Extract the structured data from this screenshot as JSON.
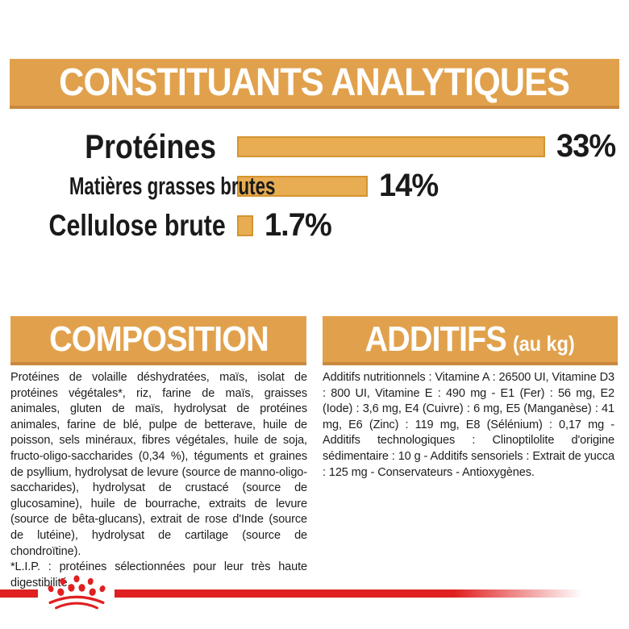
{
  "analytical": {
    "title": "CONSTITUANTS ANALYTIQUES",
    "rows": [
      {
        "label": "Protéines",
        "value": "33%",
        "percent": 33
      },
      {
        "label": "Matières grasses brutes",
        "value": "14%",
        "percent": 14
      },
      {
        "label": "Cellulose brute",
        "value": "1.7%",
        "percent": 1.7
      }
    ]
  },
  "composition": {
    "title": "COMPOSITION",
    "body": "Protéines de volaille déshydratées, maïs, isolat de protéines végétales*, riz, farine de maïs, graisses animales, gluten de maïs, hydrolysat de protéines animales, farine de blé, pulpe de betterave, huile de poisson, sels minéraux, fibres végétales, huile de soja, fructo-oligo-saccharides (0,34 %), téguments et graines de psyllium, hydrolysat de levure (source de manno-oligo-saccharides), hydrolysat de crustacé (source de glucosamine), huile de bourrache, extraits de levure (source de bêta-glucans), extrait de rose d'Inde (source de lutéine), hydrolysat de cartilage (source de chondroïtine).",
    "footnote": "*L.I.P. : protéines sélectionnées pour leur très haute digestibilité."
  },
  "additives": {
    "title": "ADDITIFS",
    "title_suffix": "(au kg)",
    "body": "Additifs nutritionnels : Vitamine A : 26500 UI, Vitamine D3 : 800 UI, Vitamine E : 490 mg - E1 (Fer) : 56 mg, E2 (Iode) : 3,6 mg, E4 (Cuivre) : 6 mg, E5 (Manganèse) : 41 mg, E6 (Zinc) : 119 mg, E8 (Sélénium) : 0,17 mg - Additifs technologiques : Clinoptilolite d'origine sédimentaire : 10 g - Additifs sensoriels : Extrait de yucca : 125 mg - Conservateurs - Antioxygènes."
  },
  "brand": {
    "logo_icon": "royal-canin-crown-icon"
  },
  "colors": {
    "amber": "#E1A14C",
    "amber_dark_edge": "#C9883D",
    "bar_fill": "#E8AC52",
    "bar_border": "#D49430",
    "red": "#E02020",
    "text": "#1A1A1A",
    "header_text": "#FFFFFF"
  },
  "chart_data": {
    "type": "bar",
    "orientation": "horizontal",
    "title": "CONSTITUANTS ANALYTIQUES",
    "categories": [
      "Protéines",
      "Matières grasses brutes",
      "Cellulose brute"
    ],
    "values": [
      33,
      14,
      1.7
    ],
    "value_labels": [
      "33%",
      "14%",
      "1.7%"
    ],
    "unit": "%",
    "xlim": [
      0,
      35
    ],
    "grid": false,
    "legend": false,
    "bar_color": "#E8AC52"
  }
}
